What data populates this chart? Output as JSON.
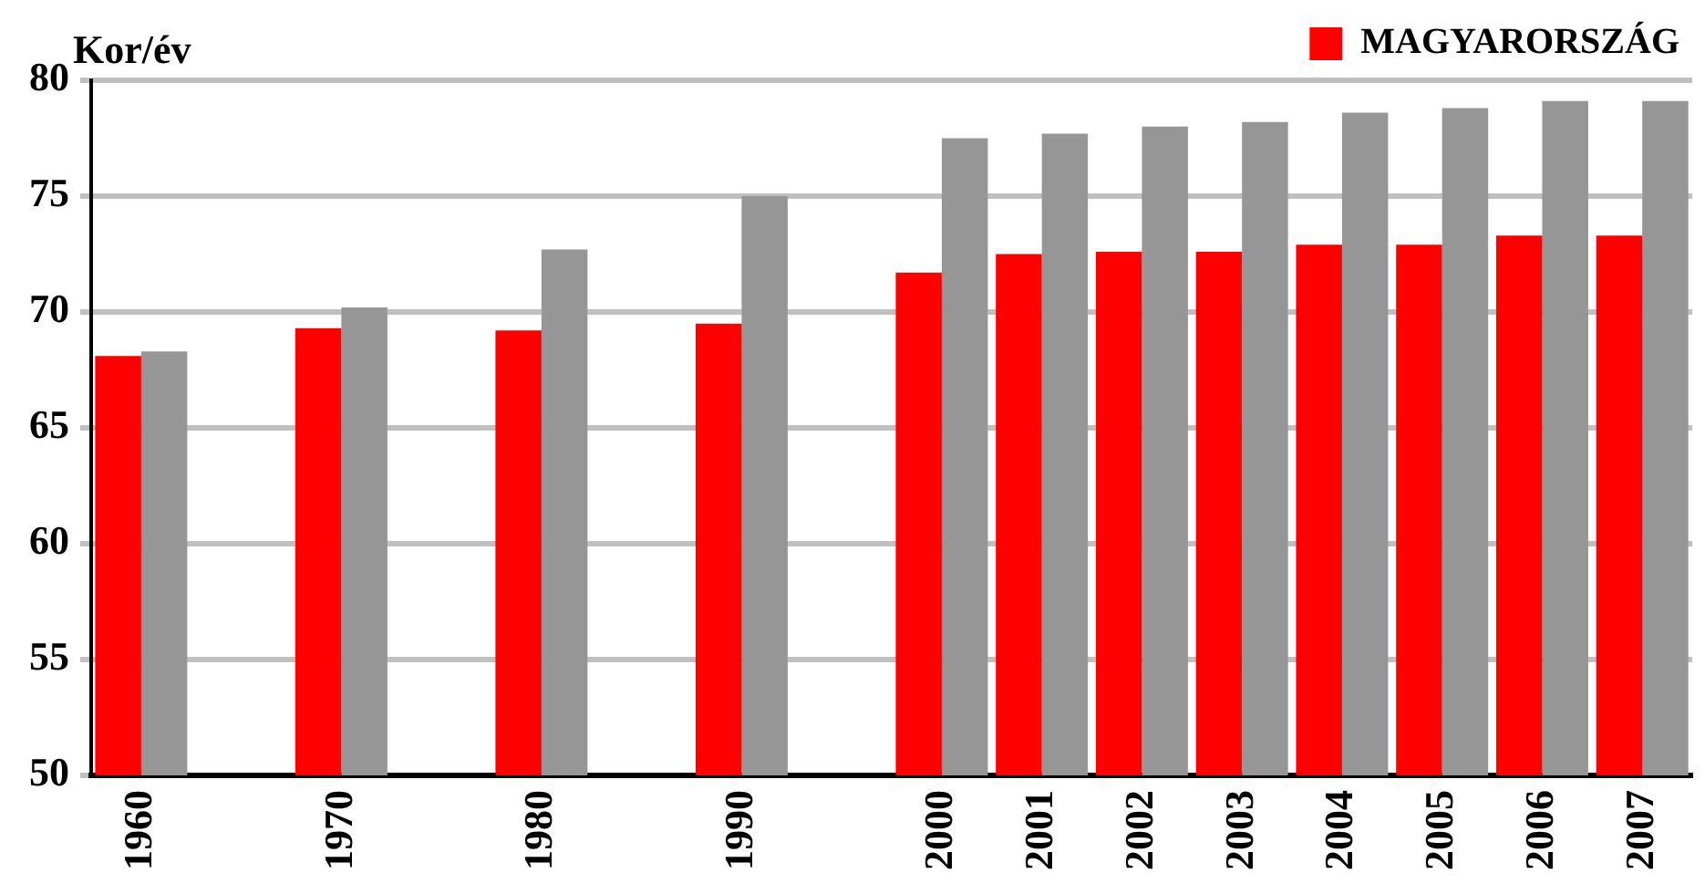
{
  "chart_data": {
    "type": "bar",
    "ylabel": "Kor/év",
    "categories": [
      "1960",
      null,
      "1970",
      null,
      "1980",
      null,
      "1990",
      null,
      "2000",
      "2001",
      "2002",
      "2003",
      "2004",
      "2005",
      "2006",
      "2007"
    ],
    "series": [
      {
        "name": "MAGYARORSZÁG",
        "color": "#ff0000",
        "values": [
          68.1,
          null,
          69.3,
          null,
          69.2,
          null,
          69.5,
          null,
          71.7,
          72.5,
          72.6,
          72.6,
          72.9,
          72.9,
          73.3,
          73.3
        ]
      },
      {
        "color": "#969696",
        "values": [
          68.3,
          null,
          70.2,
          null,
          72.7,
          null,
          75.0,
          null,
          77.5,
          77.7,
          78.0,
          78.2,
          78.6,
          78.8,
          79.1,
          79.1
        ]
      }
    ],
    "ylim": [
      50,
      80
    ],
    "yticks": [
      50,
      55,
      60,
      65,
      70,
      75,
      80
    ],
    "grid": "y",
    "legend": "top right"
  }
}
